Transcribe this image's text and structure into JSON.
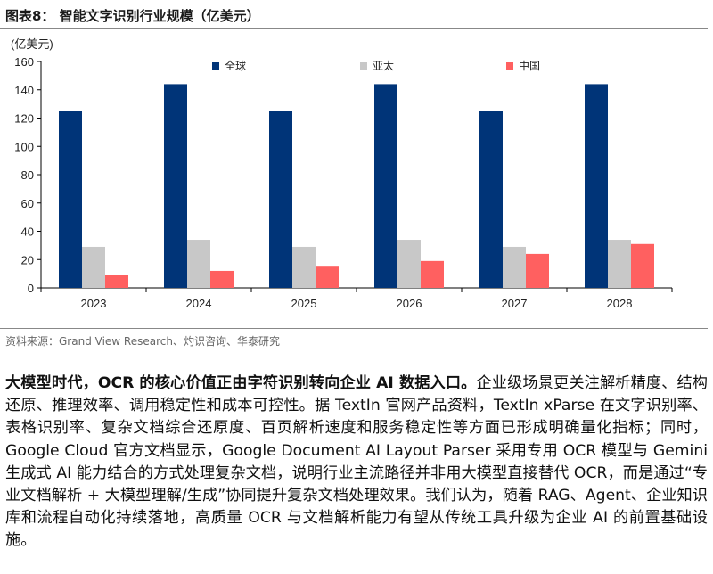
{
  "figure": {
    "title": "图表8：  智能文字识别行业规模（亿美元）",
    "source": "资料来源：Grand View Research、灼识咨询、华泰研究"
  },
  "colors": {
    "global": "#003478",
    "apac": "#c8c8c8",
    "china": "#ff6060"
  },
  "chart_data": {
    "type": "bar",
    "unit_label": "(亿美元)",
    "categories": [
      "2023",
      "2024",
      "2025",
      "2026",
      "2027",
      "2028"
    ],
    "series": [
      {
        "name": "全球",
        "values": [
          125,
          144,
          125,
          144,
          125,
          144
        ]
      },
      {
        "name": "亚太",
        "values": [
          29,
          34,
          29,
          34,
          29,
          34
        ]
      },
      {
        "name": "中国",
        "values": [
          9,
          12,
          15,
          19,
          24,
          31
        ]
      }
    ],
    "ylim": [
      0,
      160
    ],
    "yticks": [
      "0",
      "20",
      "40",
      "60",
      "80",
      "100",
      "120",
      "140",
      "160"
    ],
    "legend_position": "top",
    "grid": false
  },
  "body": {
    "lead": "大模型时代，OCR 的核心价值正由字符识别转向企业 AI 数据入口。",
    "text": "企业级场景更关注解析精度、结构还原、推理效率、调用稳定性和成本可控性。据 TextIn 官网产品资料，TextIn xParse 在文字识别率、表格识别率、复杂文档综合还原度、百页解析速度和服务稳定性等方面已形成明确量化指标；同时，Google Cloud 官方文档显示，Google Document AI Layout Parser 采用专用 OCR 模型与 Gemini 生成式 AI 能力结合的方式处理复杂文档，说明行业主流路径并非用大模型直接替代 OCR，而是通过“专业文档解析 + 大模型理解/生成”协同提升复杂文档处理效果。我们认为，随着 RAG、Agent、企业知识库和流程自动化持续落地，高质量 OCR 与文档解析能力有望从传统工具升级为企业 AI 的前置基础设施。"
  }
}
